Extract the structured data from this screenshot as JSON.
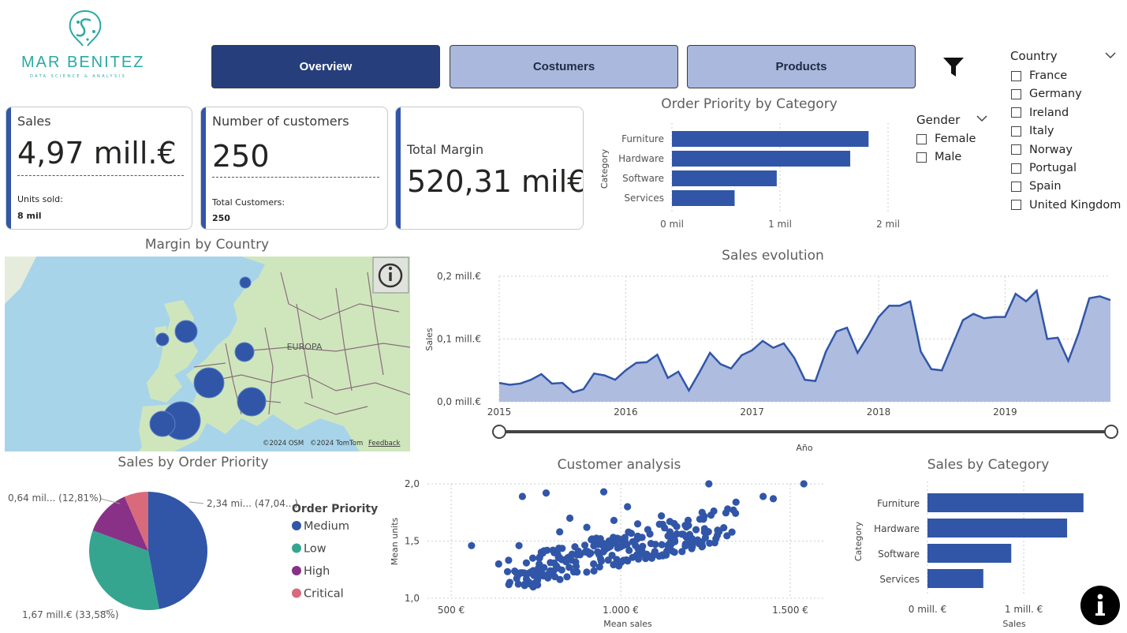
{
  "logo": {
    "name": "MAR BENITEZ",
    "tagline": "DATA SCIENCE & ANALYSIS"
  },
  "nav": {
    "overview": "Overview",
    "customers": "Costumers",
    "products": "Products"
  },
  "kpis": {
    "sales": {
      "label": "Sales",
      "value": "4,97 mill.€",
      "sub_label": "Units sold:",
      "sub_value": "8 mil"
    },
    "customers": {
      "label": "Number of customers",
      "value": "250",
      "sub_label": "Total Customers:",
      "sub_value": "250"
    },
    "margin": {
      "label": "Total Margin",
      "value": "520,31 mil€"
    }
  },
  "gender_slicer": {
    "title": "Gender",
    "options": [
      "Female",
      "Male"
    ]
  },
  "country_slicer": {
    "title": "Country",
    "options": [
      "France",
      "Germany",
      "Ireland",
      "Italy",
      "Norway",
      "Portugal",
      "Spain",
      "United Kingdom"
    ]
  },
  "map": {
    "title": "Margin by Country",
    "label": "EUROPA",
    "attribution_osm": "©2024 OSM",
    "attribution_tomtom": "©2024 TomTom",
    "feedback": "Feedback",
    "info_icon": "info-icon"
  },
  "colors": {
    "primary": "#3156a8",
    "navy": "#263f7c",
    "nav_light": "#aab8dd",
    "area": "#aab8dd",
    "teal": "#2aa9a3"
  },
  "chart_data": [
    {
      "id": "order_priority_by_category",
      "type": "bar",
      "orientation": "horizontal",
      "title": "Order Priority by Category",
      "ylabel": "Category",
      "categories": [
        "Furniture",
        "Hardware",
        "Software",
        "Services"
      ],
      "values": [
        1820,
        1650,
        970,
        580
      ],
      "xlim": [
        0,
        2000
      ],
      "xticks": [
        0,
        1000,
        2000
      ],
      "xtick_labels": [
        "0 mil",
        "1 mil",
        "2 mil"
      ]
    },
    {
      "id": "sales_evolution",
      "type": "area",
      "title": "Sales evolution",
      "xlabel": "Año",
      "ylabel": "Sales",
      "ylim": [
        0,
        0.2
      ],
      "yticks": [
        0,
        0.1,
        0.2
      ],
      "ytick_labels": [
        "0,0 mill.€",
        "0,1 mill.€",
        "0,2 mill.€"
      ],
      "x_start": 2015,
      "xtick_labels": [
        "2015",
        "2016",
        "2017",
        "2018",
        "2019"
      ],
      "values": [
        0.03,
        0.027,
        0.029,
        0.035,
        0.044,
        0.029,
        0.03,
        0.015,
        0.02,
        0.045,
        0.042,
        0.035,
        0.05,
        0.062,
        0.063,
        0.075,
        0.038,
        0.048,
        0.018,
        0.047,
        0.078,
        0.06,
        0.053,
        0.074,
        0.082,
        0.097,
        0.086,
        0.093,
        0.07,
        0.035,
        0.033,
        0.08,
        0.112,
        0.118,
        0.078,
        0.105,
        0.135,
        0.153,
        0.153,
        0.16,
        0.08,
        0.052,
        0.05,
        0.09,
        0.13,
        0.14,
        0.133,
        0.135,
        0.135,
        0.172,
        0.16,
        0.177,
        0.1,
        0.102,
        0.065,
        0.11,
        0.165,
        0.168,
        0.162
      ]
    },
    {
      "id": "sales_by_order_priority",
      "type": "pie",
      "title": "Sales by Order Priority",
      "legend_title": "Order Priority",
      "labels": [
        "Medium",
        "Low",
        "High",
        "Critical"
      ],
      "values": [
        47.04,
        33.58,
        12.81,
        6.57
      ],
      "colors": [
        "#3156a8",
        "#36a58f",
        "#883187",
        "#d86a7c"
      ],
      "data_labels": [
        "2,34 mi... (47,04...)",
        "1,67 mill.€ (33,58%)",
        "0,64 mil... (12,81%)",
        ""
      ]
    },
    {
      "id": "customer_analysis",
      "type": "scatter",
      "title": "Customer analysis",
      "xlabel": "Mean sales",
      "ylabel": "Mean units",
      "xlim": [
        430,
        1600
      ],
      "ylim": [
        1.0,
        2.0
      ],
      "xtick_labels": [
        "500 €",
        "1.000 €",
        "1.500 €"
      ],
      "xticks": [
        500,
        1000,
        1500
      ],
      "yticks": [
        1.0,
        1.5,
        2.0
      ],
      "ytick_labels": [
        "1,0",
        "1,5",
        "2,0"
      ],
      "n_points": 250,
      "points": [
        [
          560,
          1.46
        ],
        [
          640,
          1.3
        ],
        [
          670,
          1.12
        ],
        [
          1260,
          2.0
        ],
        [
          1420,
          1.89
        ],
        [
          1450,
          1.87
        ],
        [
          1540,
          2.0
        ],
        [
          1340,
          1.84
        ],
        [
          710,
          1.89
        ],
        [
          780,
          1.92
        ],
        [
          950,
          1.93
        ],
        [
          1240,
          1.75
        ],
        [
          700,
          1.46
        ],
        [
          820,
          1.58
        ],
        [
          900,
          1.62
        ],
        [
          980,
          1.68
        ],
        [
          1050,
          1.65
        ],
        [
          1120,
          1.72
        ],
        [
          1180,
          1.56
        ],
        [
          1000,
          1.45
        ],
        [
          760,
          1.35
        ],
        [
          880,
          1.38
        ],
        [
          940,
          1.52
        ],
        [
          1080,
          1.6
        ],
        [
          1150,
          1.48
        ],
        [
          850,
          1.7
        ],
        [
          1020,
          1.8
        ],
        [
          920,
          1.3
        ],
        [
          1100,
          1.4
        ],
        [
          800,
          1.42
        ]
      ]
    },
    {
      "id": "sales_by_category",
      "type": "bar",
      "orientation": "horizontal",
      "title": "Sales by Category",
      "xlabel": "Sales",
      "ylabel": "Category",
      "categories": [
        "Furniture",
        "Hardware",
        "Software",
        "Services"
      ],
      "values": [
        1.62,
        1.45,
        0.87,
        0.58
      ],
      "xlim": [
        0,
        1.9
      ],
      "xticks": [
        0,
        1
      ],
      "xtick_labels": [
        "0 mill. €",
        "1 mill. €"
      ]
    }
  ]
}
